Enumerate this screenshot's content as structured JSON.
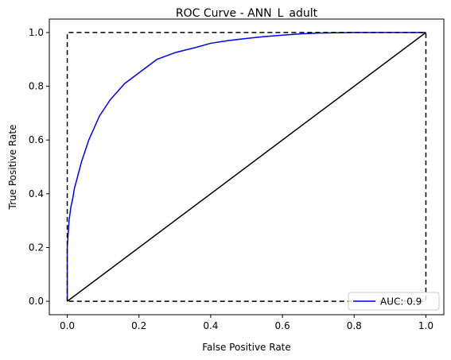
{
  "chart_data": {
    "type": "line",
    "title": "ROC Curve - ANN_L_adult",
    "xlabel": "False Positive Rate",
    "ylabel": "True Positive Rate",
    "xlim": [
      -0.05,
      1.05
    ],
    "ylim": [
      -0.05,
      1.05
    ],
    "xticks": [
      0.0,
      0.2,
      0.4,
      0.6,
      0.8,
      1.0
    ],
    "yticks": [
      0.0,
      0.2,
      0.4,
      0.6,
      0.8,
      1.0
    ],
    "xtick_labels": [
      "0.0",
      "0.2",
      "0.4",
      "0.6",
      "0.8",
      "1.0"
    ],
    "ytick_labels": [
      "0.0",
      "0.2",
      "0.4",
      "0.6",
      "0.8",
      "1.0"
    ],
    "grid": false,
    "legend_position": "lower-right",
    "series": [
      {
        "name": "AUC: 0.9",
        "color": "#0000ff",
        "style": "solid",
        "x": [
          0.0,
          0.0,
          0.005,
          0.01,
          0.015,
          0.02,
          0.03,
          0.04,
          0.05,
          0.06,
          0.07,
          0.08,
          0.09,
          0.1,
          0.12,
          0.14,
          0.16,
          0.18,
          0.2,
          0.22,
          0.25,
          0.28,
          0.3,
          0.33,
          0.36,
          0.4,
          0.45,
          0.5,
          0.55,
          0.6,
          0.65,
          0.7,
          0.8,
          0.9,
          1.0
        ],
        "y": [
          0.0,
          0.2,
          0.3,
          0.35,
          0.38,
          0.42,
          0.47,
          0.52,
          0.56,
          0.6,
          0.63,
          0.66,
          0.69,
          0.71,
          0.75,
          0.78,
          0.81,
          0.83,
          0.85,
          0.87,
          0.9,
          0.915,
          0.925,
          0.935,
          0.945,
          0.96,
          0.97,
          0.978,
          0.985,
          0.99,
          0.995,
          0.998,
          1.0,
          1.0,
          1.0
        ]
      },
      {
        "color": "#000000",
        "style": "solid",
        "x": [
          0.0,
          1.0
        ],
        "y": [
          0.0,
          1.0
        ]
      },
      {
        "color": "#000000",
        "style": "dashed",
        "x": [
          0.0,
          0.0,
          1.0,
          1.0,
          0.0
        ],
        "y": [
          0.0,
          1.0,
          1.0,
          0.0,
          0.0
        ]
      }
    ]
  }
}
